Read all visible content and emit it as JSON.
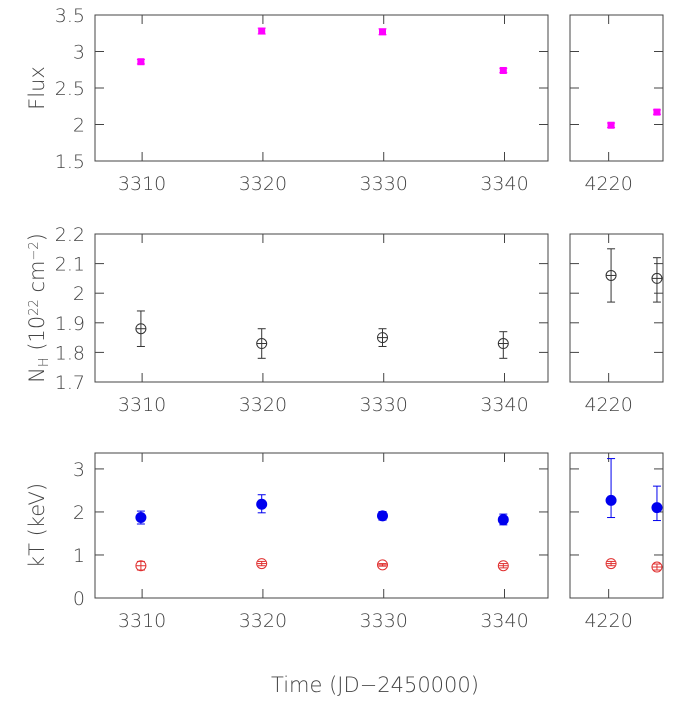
{
  "chart_data": [
    {
      "type": "scatter",
      "ylabel": [
        "Flux"
      ],
      "xlim": [
        3306.1,
        3343.6
      ],
      "xticks": [
        3310,
        3320,
        3330,
        3340
      ],
      "ylim": [
        1.5,
        3.5
      ],
      "yticks": [
        1.5,
        2,
        2.5,
        3,
        3.5
      ],
      "show_ytick_labels": true,
      "series": [
        {
          "color": "#ff00ff",
          "marker": "square",
          "x": [
            3309.9,
            3319.9,
            3329.9,
            3339.9
          ],
          "values": [
            2.86,
            3.28,
            3.27,
            2.74
          ],
          "errors_low": [
            0.03,
            0.04,
            0.04,
            0.03
          ],
          "errors_high": [
            0.03,
            0.04,
            0.04,
            0.03
          ]
        }
      ]
    },
    {
      "type": "scatter",
      "xlim": [
        4216.8,
        4224.5
      ],
      "xticks": [
        4220
      ],
      "ylim": [
        1.5,
        3.5
      ],
      "yticks": [
        1.5,
        2,
        2.5,
        3,
        3.5
      ],
      "show_ytick_labels": false,
      "series": [
        {
          "color": "#ff00ff",
          "marker": "square",
          "x": [
            4220.2,
            4224.0
          ],
          "values": [
            1.99,
            2.17
          ],
          "errors_low": [
            0.03,
            0.03
          ],
          "errors_high": [
            0.03,
            0.03
          ]
        }
      ]
    },
    {
      "type": "scatter",
      "ylabel": [
        "N",
        "H",
        " (10",
        "22",
        " cm",
        "−2",
        ")"
      ],
      "xlim": [
        3306.1,
        3343.6
      ],
      "xticks": [
        3310,
        3320,
        3330,
        3340
      ],
      "ylim": [
        1.7,
        2.2
      ],
      "yticks": [
        1.7,
        1.8,
        1.9,
        2,
        2.1,
        2.2
      ],
      "show_ytick_labels": true,
      "series": [
        {
          "color": "#333333",
          "marker": "open-cross",
          "x": [
            3309.9,
            3319.9,
            3329.9,
            3339.9
          ],
          "values": [
            1.88,
            1.83,
            1.85,
            1.83
          ],
          "errors_low": [
            0.06,
            0.05,
            0.03,
            0.05
          ],
          "errors_high": [
            0.06,
            0.05,
            0.03,
            0.04
          ]
        }
      ]
    },
    {
      "type": "scatter",
      "xlim": [
        4216.8,
        4224.5
      ],
      "xticks": [
        4220
      ],
      "ylim": [
        1.7,
        2.2
      ],
      "yticks": [
        1.7,
        1.8,
        1.9,
        2,
        2.1,
        2.2
      ],
      "show_ytick_labels": false,
      "series": [
        {
          "color": "#333333",
          "marker": "open-cross",
          "x": [
            4220.2,
            4224.0
          ],
          "values": [
            2.06,
            2.05
          ],
          "errors_low": [
            0.09,
            0.08
          ],
          "errors_high": [
            0.09,
            0.07
          ]
        }
      ]
    },
    {
      "type": "scatter",
      "ylabel": [
        "kT (keV)"
      ],
      "xlabel": "Time (JD−2450000)",
      "xlim": [
        3306.1,
        3343.6
      ],
      "xticks": [
        3310,
        3320,
        3330,
        3340
      ],
      "ylim": [
        0,
        3.37
      ],
      "yticks": [
        0,
        1,
        2,
        3
      ],
      "show_ytick_labels": true,
      "series": [
        {
          "color": "#0000ee",
          "marker": "filled",
          "x": [
            3309.9,
            3319.9,
            3329.9,
            3339.9
          ],
          "values": [
            1.87,
            2.18,
            1.91,
            1.82
          ],
          "errors_low": [
            0.15,
            0.2,
            0.1,
            0.12
          ],
          "errors_high": [
            0.15,
            0.22,
            0.1,
            0.13
          ]
        },
        {
          "color": "#e03030",
          "marker": "open-cross",
          "x": [
            3309.9,
            3319.9,
            3329.9,
            3339.9
          ],
          "values": [
            0.75,
            0.8,
            0.77,
            0.75
          ],
          "errors_low": [
            0.1,
            0.05,
            0.03,
            0.05
          ],
          "errors_high": [
            0.1,
            0.05,
            0.03,
            0.05
          ]
        }
      ]
    },
    {
      "type": "scatter",
      "xlim": [
        4216.8,
        4224.5
      ],
      "xticks": [
        4220
      ],
      "ylim": [
        0,
        3.37
      ],
      "yticks": [
        0,
        1,
        2,
        3
      ],
      "show_ytick_labels": false,
      "series": [
        {
          "color": "#0000ee",
          "marker": "filled",
          "x": [
            4220.2,
            4224.0
          ],
          "values": [
            2.27,
            2.1
          ],
          "errors_low": [
            0.4,
            0.3
          ],
          "errors_high": [
            0.97,
            0.5
          ]
        },
        {
          "color": "#e03030",
          "marker": "open-cross",
          "x": [
            4220.2,
            4224.0
          ],
          "values": [
            0.8,
            0.72
          ],
          "errors_low": [
            0.05,
            0.07
          ],
          "errors_high": [
            0.05,
            0.07
          ]
        }
      ]
    }
  ]
}
